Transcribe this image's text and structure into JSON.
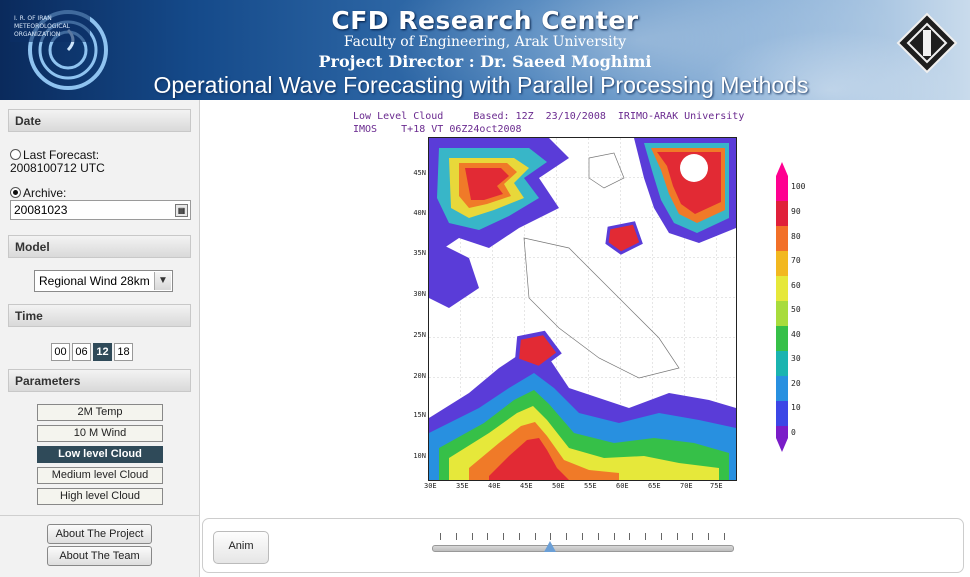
{
  "header": {
    "title": "CFD Research Center",
    "faculty": "Faculty of Engineering, Arak University",
    "director": "Project Director : Dr. Saeed Moghimi",
    "subtitle": "Operational Wave Forecasting with Parallel Processing Methods",
    "left_logo_text": "I. R. OF IRAN METEOROLOGICAL ORGANIZATION"
  },
  "sidebar": {
    "date_section": "Date",
    "last_forecast_label": "Last Forecast:",
    "last_forecast_value": "2008100712 UTC",
    "archive_label": "Archive:",
    "archive_value": "20081023",
    "model_section": "Model",
    "model_selected": "Regional Wind 28km",
    "time_section": "Time",
    "times": [
      "00",
      "06",
      "12",
      "18"
    ],
    "selected_time": "12",
    "parameters_section": "Parameters",
    "parameters": [
      "2M Temp",
      "10 M Wind",
      "Low level Cloud",
      "Medium level Cloud",
      "High level Cloud"
    ],
    "selected_parameter": "Low level Cloud",
    "about_project": "About The Project",
    "about_team": "About The Team"
  },
  "map": {
    "title_line1": "Low Level Cloud     Based: 12Z  23/10/2008  IRIMO-ARAK University",
    "title_line2": "IMOS    T+18 VT 06Z24oct2008",
    "lat_labels": [
      "45N",
      "40N",
      "35N",
      "30N",
      "25N",
      "20N",
      "15N",
      "10N"
    ],
    "lon_labels": [
      "30E",
      "35E",
      "40E",
      "45E",
      "50E",
      "55E",
      "60E",
      "65E",
      "70E",
      "75E"
    ],
    "colorbar_labels": [
      "100",
      "90",
      "80",
      "70",
      "60",
      "50",
      "40",
      "30",
      "20",
      "10",
      "0"
    ],
    "colorbar_colors": [
      "#ff0090",
      "#e0203a",
      "#f27028",
      "#f2b820",
      "#e6e83a",
      "#a8dc3c",
      "#36c048",
      "#1ab4b0",
      "#2890e0",
      "#3c46e6",
      "#7a1cc8"
    ]
  },
  "controls": {
    "anim_label": "Anim",
    "slider_ticks": 19,
    "slider_position": 7
  }
}
